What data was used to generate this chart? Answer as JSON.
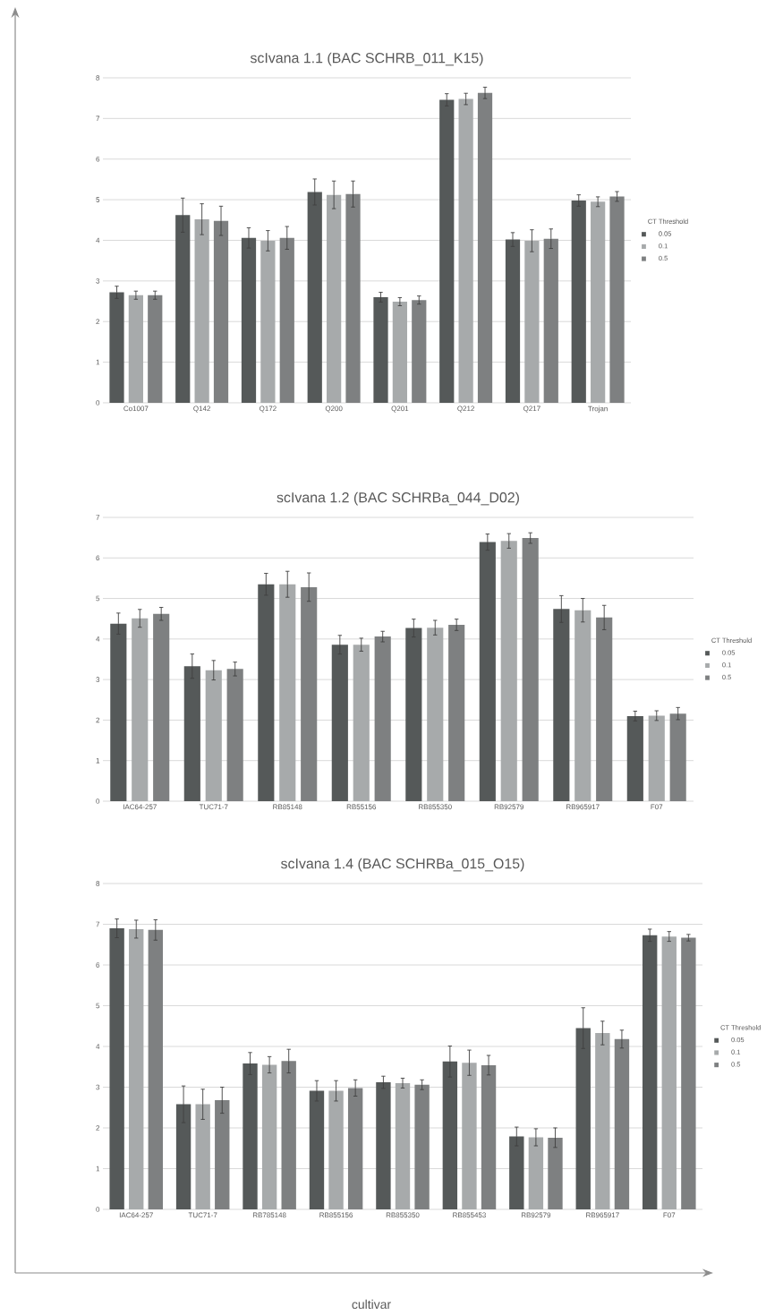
{
  "chart_data": [
    {
      "type": "bar",
      "title": "scIvana 1.1 (BAC SCHRB_011_K15)",
      "categories": [
        "Co1007",
        "Q142",
        "Q172",
        "Q200",
        "Q201",
        "Q212",
        "Q217",
        "Trojan"
      ],
      "series": [
        {
          "name": "0.05",
          "color": "#555959",
          "values": [
            2.72,
            4.62,
            4.06,
            5.19,
            2.6,
            7.46,
            4.02,
            4.98
          ],
          "errors": [
            0.15,
            0.42,
            0.25,
            0.32,
            0.12,
            0.15,
            0.17,
            0.14
          ]
        },
        {
          "name": "0.1",
          "color": "#a7aaab",
          "values": [
            2.65,
            4.52,
            3.99,
            5.12,
            2.49,
            7.48,
            3.99,
            4.95
          ],
          "errors": [
            0.1,
            0.38,
            0.25,
            0.34,
            0.1,
            0.14,
            0.27,
            0.12
          ]
        },
        {
          "name": "0.5",
          "color": "#7e8081",
          "values": [
            2.65,
            4.48,
            4.06,
            5.14,
            2.53,
            7.63,
            4.04,
            5.08
          ],
          "errors": [
            0.1,
            0.36,
            0.28,
            0.32,
            0.1,
            0.14,
            0.24,
            0.12
          ]
        }
      ],
      "ylim": [
        0,
        8
      ],
      "yticks": [
        0,
        1,
        2,
        3,
        4,
        5,
        6,
        7,
        8
      ],
      "grid": "y",
      "legend": "right",
      "legend_title": "CT Threshold"
    },
    {
      "type": "bar",
      "title": "scIvana 1.2 (BAC SCHRBa_044_D02)",
      "categories": [
        "IAC64-257",
        "TUC71-7",
        "RB85148",
        "RB55156",
        "RB855350",
        "RB92579",
        "RB965917",
        "F07"
      ],
      "series": [
        {
          "name": "0.05",
          "color": "#555959",
          "values": [
            4.38,
            3.33,
            5.35,
            3.86,
            4.27,
            6.39,
            4.74,
            2.1
          ],
          "errors": [
            0.26,
            0.3,
            0.27,
            0.23,
            0.22,
            0.2,
            0.33,
            0.12
          ]
        },
        {
          "name": "0.1",
          "color": "#a7aaab",
          "values": [
            4.51,
            3.23,
            5.35,
            3.86,
            4.28,
            6.42,
            4.71,
            2.11
          ],
          "errors": [
            0.22,
            0.24,
            0.32,
            0.16,
            0.18,
            0.18,
            0.29,
            0.12
          ]
        },
        {
          "name": "0.5",
          "color": "#7e8081",
          "values": [
            4.62,
            3.26,
            5.28,
            4.06,
            4.35,
            6.49,
            4.53,
            2.16
          ],
          "errors": [
            0.16,
            0.17,
            0.35,
            0.13,
            0.14,
            0.13,
            0.3,
            0.15
          ]
        }
      ],
      "ylim": [
        0,
        7
      ],
      "yticks": [
        0,
        1,
        2,
        3,
        4,
        5,
        6,
        7
      ],
      "grid": "y",
      "legend": "right",
      "legend_title": "CT Threshold"
    },
    {
      "type": "bar",
      "title": "scIvana 1.4 (BAC SCHRBa_015_O15)",
      "xlabel": "cultivar",
      "categories": [
        "IAC64-257",
        "TUC71-7",
        "RB785148",
        "RB855156",
        "RB855350",
        "RB855453",
        "RB92579",
        "RB965917",
        "F07"
      ],
      "series": [
        {
          "name": "0.05",
          "color": "#555959",
          "values": [
            6.9,
            2.58,
            3.58,
            2.91,
            3.12,
            3.63,
            1.79,
            4.45,
            6.73
          ],
          "errors": [
            0.23,
            0.45,
            0.27,
            0.25,
            0.15,
            0.38,
            0.23,
            0.5,
            0.15
          ]
        },
        {
          "name": "0.1",
          "color": "#a7aaab",
          "values": [
            6.88,
            2.58,
            3.55,
            2.91,
            3.1,
            3.6,
            1.77,
            4.33,
            6.7
          ],
          "errors": [
            0.22,
            0.37,
            0.2,
            0.25,
            0.12,
            0.31,
            0.21,
            0.29,
            0.12
          ]
        },
        {
          "name": "0.5",
          "color": "#7e8081",
          "values": [
            6.86,
            2.68,
            3.64,
            2.98,
            3.06,
            3.54,
            1.76,
            4.18,
            6.67
          ],
          "errors": [
            0.25,
            0.32,
            0.29,
            0.2,
            0.12,
            0.24,
            0.24,
            0.22,
            0.08
          ]
        }
      ],
      "ylim": [
        0,
        8
      ],
      "yticks": [
        0,
        1,
        2,
        3,
        4,
        5,
        6,
        7,
        8
      ],
      "grid": "y",
      "legend": "right",
      "legend_title": "CT Threshold"
    }
  ]
}
